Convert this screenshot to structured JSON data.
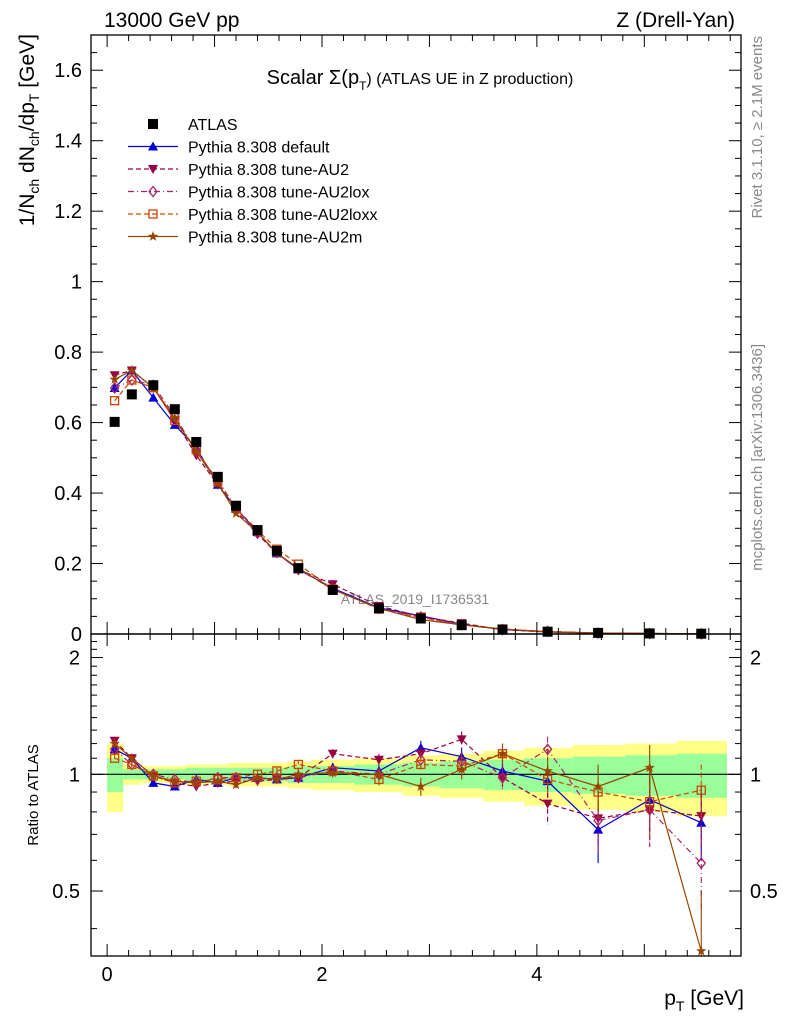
{
  "header": {
    "left": "13000 GeV pp",
    "right": "Z (Drell-Yan)"
  },
  "side": {
    "rivet": "Rivet 3.1.10, ≥ 2.1M events",
    "mcplots": "mcplots.cern.ch [arXiv:1306.3436]"
  },
  "chart_data": {
    "type": "line",
    "title": "Scalar Σ(p_T) (ATLAS UE in Z production)",
    "title_parts": {
      "pre": "Scalar Σ(p",
      "sub": "T",
      "post": ") (ATLAS UE in Z production)"
    },
    "watermark": "ATLAS_2019_I1736531",
    "xlabel": "p_T [GeV]",
    "xlabel_parts": {
      "main": "p",
      "sub": "T",
      "unit": " [GeV]"
    },
    "ylabel": "1/N_ch dN_ch/dp_T [GeV]",
    "ylabel_ratio": "Ratio to ATLAS",
    "xlim": [
      -0.15,
      5.9
    ],
    "ylim": [
      0,
      1.7
    ],
    "ratio_ylim": [
      0.34,
      2.3
    ],
    "ratio_log_scale": true,
    "xticks": [
      "0",
      "2",
      "4"
    ],
    "yticks": [
      "0",
      "0.2",
      "0.4",
      "0.6",
      "0.8",
      "1",
      "1.2",
      "1.4",
      "1.6"
    ],
    "ratio_yticks": [
      "0.5",
      "1",
      "2"
    ],
    "legend_position": "top-left",
    "x": [
      0.07,
      0.23,
      0.43,
      0.63,
      0.83,
      1.03,
      1.2,
      1.4,
      1.58,
      1.78,
      2.1,
      2.53,
      2.92,
      3.3,
      3.68,
      4.1,
      4.57,
      5.05,
      5.53
    ],
    "x_edges": [
      0.0,
      0.15,
      0.32,
      0.53,
      0.73,
      0.93,
      1.12,
      1.3,
      1.5,
      1.68,
      1.9,
      2.3,
      2.75,
      3.1,
      3.5,
      3.88,
      4.33,
      4.82,
      5.3,
      5.77
    ],
    "series": [
      {
        "name": "ATLAS",
        "color": "#000000",
        "marker": "square-filled",
        "line": "none",
        "values": [
          0.602,
          0.68,
          0.706,
          0.638,
          0.545,
          0.446,
          0.364,
          0.295,
          0.236,
          0.187,
          0.125,
          0.073,
          0.044,
          0.025,
          0.0125,
          0.0065,
          0.0032,
          0.0016,
          0.0008
        ],
        "ratio_band_stat": [
          0.1,
          0.03,
          0.03,
          0.03,
          0.04,
          0.04,
          0.04,
          0.04,
          0.04,
          0.05,
          0.05,
          0.06,
          0.07,
          0.08,
          0.09,
          0.1,
          0.11,
          0.12,
          0.13
        ],
        "ratio_band_total": [
          0.2,
          0.06,
          0.05,
          0.05,
          0.06,
          0.06,
          0.07,
          0.07,
          0.07,
          0.08,
          0.09,
          0.1,
          0.12,
          0.13,
          0.15,
          0.17,
          0.19,
          0.2,
          0.22
        ]
      },
      {
        "name": "Pythia 8.308 default",
        "color": "#0000dd",
        "marker": "triangle-up-filled",
        "line": "solid",
        "ratio": [
          1.16,
          1.1,
          0.95,
          0.93,
          0.97,
          0.95,
          0.98,
          0.98,
          0.97,
          0.98,
          1.04,
          1.02,
          1.17,
          1.11,
          1.02,
          0.96,
          0.72,
          0.86,
          0.75
        ],
        "ratio_err": [
          0.03,
          0.02,
          0.01,
          0.01,
          0.01,
          0.02,
          0.02,
          0.02,
          0.02,
          0.03,
          0.03,
          0.04,
          0.05,
          0.06,
          0.07,
          0.09,
          0.13,
          0.15,
          0.15
        ]
      },
      {
        "name": "Pythia 8.308 tune-AU2",
        "color": "#990044",
        "marker": "triangle-down-filled",
        "line": "dashed",
        "ratio": [
          1.22,
          1.1,
          0.99,
          0.95,
          0.93,
          0.95,
          0.96,
          0.96,
          0.97,
          0.98,
          1.13,
          1.09,
          1.13,
          1.23,
          0.98,
          0.84,
          0.77,
          0.81,
          0.78
        ],
        "ratio_err": [
          0.03,
          0.02,
          0.01,
          0.01,
          0.01,
          0.02,
          0.02,
          0.02,
          0.02,
          0.03,
          0.03,
          0.04,
          0.05,
          0.06,
          0.07,
          0.1,
          0.13,
          0.16,
          0.15
        ]
      },
      {
        "name": "Pythia 8.308 tune-AU2lox",
        "color": "#aa2266",
        "marker": "diamond-open",
        "line": "dashdot",
        "ratio": [
          1.16,
          1.06,
          1.0,
          0.97,
          0.95,
          0.98,
          0.98,
          0.97,
          0.98,
          0.98,
          1.02,
          1.0,
          1.09,
          1.08,
          0.98,
          1.16,
          0.76,
          0.81,
          0.59
        ],
        "ratio_err": [
          0.03,
          0.02,
          0.01,
          0.01,
          0.01,
          0.02,
          0.02,
          0.02,
          0.02,
          0.03,
          0.03,
          0.04,
          0.05,
          0.06,
          0.07,
          0.09,
          0.13,
          0.15,
          0.15
        ]
      },
      {
        "name": "Pythia 8.308 tune-AU2loxx",
        "color": "#cc4400",
        "marker": "square-open",
        "line": "dashed",
        "ratio": [
          1.1,
          1.06,
          0.99,
          0.95,
          0.96,
          0.97,
          0.98,
          1.0,
          1.02,
          1.06,
          1.02,
          0.97,
          1.06,
          1.05,
          1.13,
          0.97,
          0.9,
          0.85,
          0.91
        ],
        "ratio_err": [
          0.03,
          0.02,
          0.01,
          0.01,
          0.01,
          0.02,
          0.02,
          0.02,
          0.02,
          0.03,
          0.03,
          0.04,
          0.05,
          0.06,
          0.07,
          0.09,
          0.13,
          0.15,
          0.15
        ]
      },
      {
        "name": "Pythia 8.308 tune-AU2m",
        "color": "#994400",
        "marker": "star",
        "line": "solid",
        "ratio": [
          1.2,
          1.1,
          0.99,
          0.96,
          0.95,
          0.96,
          0.94,
          0.98,
          0.97,
          1.0,
          1.01,
          1.0,
          0.93,
          1.03,
          1.13,
          1.02,
          0.93,
          1.04,
          0.35
        ],
        "ratio_err": [
          0.03,
          0.02,
          0.01,
          0.01,
          0.01,
          0.02,
          0.02,
          0.02,
          0.02,
          0.03,
          0.03,
          0.04,
          0.05,
          0.06,
          0.07,
          0.09,
          0.13,
          0.15,
          0.15
        ]
      }
    ]
  }
}
